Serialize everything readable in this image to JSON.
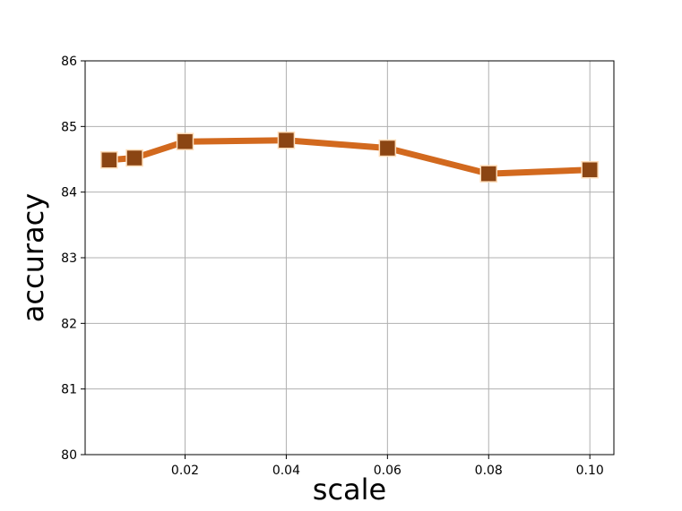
{
  "chart_data": {
    "type": "line",
    "x_label": "scale",
    "y_label": "accuracy",
    "x": [
      0.005,
      0.01,
      0.02,
      0.04,
      0.06,
      0.08,
      0.1
    ],
    "series": [
      {
        "name": null,
        "color": "#d2691e",
        "marker_color": "#8b4513",
        "marker_edge": "#ffdcb8",
        "values": [
          84.49,
          84.52,
          84.77,
          84.79,
          84.67,
          84.28,
          84.34
        ]
      }
    ],
    "xlim": [
      0.00025,
      0.10475
    ],
    "xticks": [
      0.02,
      0.04,
      0.06,
      0.08,
      {
        "value": 0.1,
        "label": "0.10"
      }
    ],
    "ylim": [
      80,
      86
    ],
    "yticks": [
      80,
      81,
      82,
      83,
      84,
      85,
      86
    ],
    "grid": true
  }
}
